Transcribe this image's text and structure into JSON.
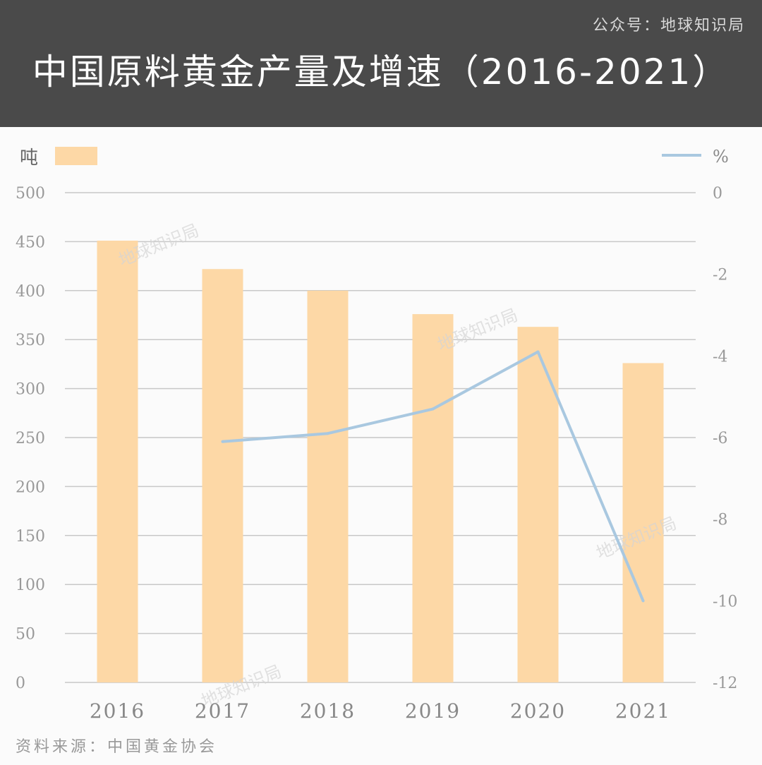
{
  "header": {
    "account": "公众号：地球知识局",
    "title": "中国原料黄金产量及增速（2016-2021）"
  },
  "watermark": "地球知识局",
  "source": "资料来源：中国黄金协会",
  "colors": {
    "bar": "#fdd8a6",
    "line": "#a9c8e0",
    "grid": "#c8c8c8",
    "axis_text": "#999999",
    "header_bg": "#4a4a4a"
  },
  "chart_data": {
    "type": "bar",
    "categories": [
      "2016",
      "2017",
      "2018",
      "2019",
      "2020",
      "2021"
    ],
    "series": [
      {
        "name": "",
        "type": "bar",
        "axis": "left",
        "values": [
          451,
          422,
          400,
          376,
          363,
          326
        ]
      },
      {
        "name": "",
        "type": "line",
        "axis": "right",
        "values": [
          null,
          -6.1,
          -5.9,
          -5.3,
          -3.9,
          -10.0
        ]
      }
    ],
    "left_axis": {
      "label": "吨",
      "ylim": [
        0,
        500
      ],
      "ticks": [
        0,
        50,
        100,
        150,
        200,
        250,
        300,
        350,
        400,
        450,
        500
      ]
    },
    "right_axis": {
      "label": "%",
      "ylim": [
        -12,
        0
      ],
      "ticks": [
        0,
        -2,
        -4,
        -6,
        -8,
        -10,
        -12
      ]
    },
    "grid": true,
    "legend": "top"
  }
}
